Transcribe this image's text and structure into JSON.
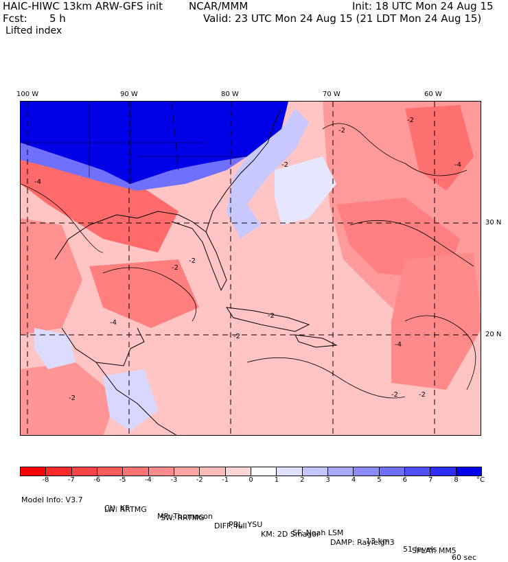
{
  "header": {
    "model_title": "HAIC-HIWC 13km ARW-GFS init",
    "org": "NCAR/MMM",
    "init": "Init: 18 UTC Mon 24 Aug 15",
    "fcst_label": "Fcst:",
    "fcst_value": "5 h",
    "valid": "Valid: 23 UTC Mon 24 Aug 15 (21 LDT Mon 24 Aug 15)",
    "field": "Lifted index"
  },
  "map": {
    "lon_labels": [
      "100 W",
      "90 W",
      "80 W",
      "70 W",
      "60 W"
    ],
    "lat_labels": [
      "30 N",
      "20 N"
    ],
    "contour_labels": [
      "-2",
      "-2",
      "-2",
      "-2",
      "-2",
      "-2",
      "-4",
      "-4",
      "-2",
      "-4",
      "-2",
      "-4",
      "-2",
      "-2"
    ]
  },
  "colorbar": {
    "unit": "°C",
    "labels": [
      "-8",
      "-7",
      "-6",
      "-5",
      "-4",
      "-3",
      "-2",
      "-1",
      "0",
      "1",
      "2",
      "3",
      "4",
      "5",
      "6",
      "7",
      "8"
    ],
    "colors": [
      "#ff0000",
      "#ff2a2a",
      "#ff4545",
      "#ff5c5c",
      "#ff7373",
      "#ff8c8c",
      "#ffa3a3",
      "#ffbaba",
      "#ffd6d6",
      "#ffffff",
      "#e0e0ff",
      "#c6c6ff",
      "#a8a8ff",
      "#8c8cff",
      "#6e6eff",
      "#5050ff",
      "#2e2eff",
      "#0000ee"
    ]
  },
  "model_info": {
    "row1": [
      "Model Info: V3.7",
      "CU: KF",
      "MP: Thompson",
      "PBL: YSU",
      "SF: Noah LSM",
      "13 km",
      "51 levels",
      "60 sec"
    ],
    "row2": [
      "LW: RRTMG",
      "SW: RRTMG",
      "DIFF: full",
      "KM: 2D Smagor",
      "DAMP: Rayleigh3",
      "SFLAY: MM5"
    ]
  }
}
